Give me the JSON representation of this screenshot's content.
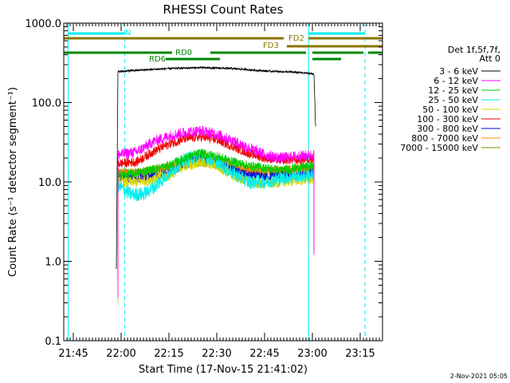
{
  "chart_data": {
    "type": "line",
    "title": "RHESSI Count Rates",
    "xlabel": "Start Time (17-Nov-15 21:41:02)",
    "ylabel": "Count Rate (s⁻¹ detector segment⁻¹)",
    "yscale": "log",
    "ylim": [
      0.1,
      1000
    ],
    "xlim_minutes": [
      -3,
      97
    ],
    "x_ticks": [
      {
        "label": "21:45",
        "minutes": 0
      },
      {
        "label": "22:00",
        "minutes": 15
      },
      {
        "label": "22:15",
        "minutes": 30
      },
      {
        "label": "22:30",
        "minutes": 45
      },
      {
        "label": "22:45",
        "minutes": 60
      },
      {
        "label": "23:00",
        "minutes": 75
      },
      {
        "label": "23:15",
        "minutes": 90
      }
    ],
    "y_ticks": [
      {
        "label": "1000.0",
        "value": 1000
      },
      {
        "label": "100.0",
        "value": 100
      },
      {
        "label": "10.0",
        "value": 10
      },
      {
        "label": "1.0",
        "value": 1
      },
      {
        "label": "0.1",
        "value": 0.1
      }
    ],
    "legend_title": [
      "Det 1f,5f,7f,",
      "Att 0"
    ],
    "legend_position": "right",
    "series": [
      {
        "name": "3 - 6 keV",
        "color": "#000000",
        "x": [
          13.5,
          14,
          20,
          30,
          40,
          50,
          60,
          70,
          75.5,
          76
        ],
        "values": [
          0.8,
          245,
          255,
          268,
          275,
          268,
          250,
          240,
          230,
          50
        ]
      },
      {
        "name": "6 - 12 keV",
        "color": "#ff00ff",
        "x": [
          14,
          20,
          25,
          30,
          35,
          40,
          45,
          50,
          55,
          60,
          65,
          70,
          75.5
        ],
        "values": [
          22,
          24,
          32,
          38,
          42,
          44,
          40,
          33,
          27,
          22,
          20,
          21,
          22
        ]
      },
      {
        "name": "12 - 25 keV",
        "color": "#00cc00",
        "x": [
          14,
          20,
          30,
          35,
          40,
          45,
          50,
          55,
          60,
          65,
          70,
          75.5
        ],
        "values": [
          12,
          13,
          16,
          20,
          23,
          21,
          18,
          16,
          15,
          14,
          15,
          16
        ]
      },
      {
        "name": "25 - 50 keV",
        "color": "#00eeee",
        "x": [
          14,
          18,
          22,
          26,
          30,
          35,
          40,
          45,
          50,
          55,
          60,
          65,
          70,
          75.5
        ],
        "values": [
          9,
          7,
          7,
          9,
          13,
          19,
          22,
          18,
          13,
          10,
          10,
          11,
          12,
          12
        ]
      },
      {
        "name": "50 - 100 keV",
        "color": "#d8d800",
        "x": [
          14,
          20,
          30,
          35,
          40,
          45,
          50,
          55,
          60,
          65,
          70,
          75.5
        ],
        "values": [
          10,
          10,
          12,
          16,
          18,
          16,
          12,
          10,
          9.5,
          10,
          10.5,
          11
        ]
      },
      {
        "name": "100 - 300 keV",
        "color": "#ee0000",
        "x": [
          14,
          20,
          25,
          30,
          35,
          40,
          45,
          50,
          55,
          60,
          65,
          70,
          75.5
        ],
        "values": [
          17,
          18,
          24,
          30,
          35,
          37,
          34,
          28,
          23,
          20,
          19,
          19,
          20
        ]
      },
      {
        "name": "300 - 800 keV",
        "color": "#0000dd",
        "x": [
          14,
          20,
          30,
          35,
          40,
          45,
          50,
          55,
          60,
          65,
          70,
          75.5
        ],
        "values": [
          11,
          11,
          13,
          17,
          20,
          17,
          14,
          12,
          11.5,
          12,
          12,
          13
        ]
      },
      {
        "name": "800 - 7000 keV",
        "color": "#ff8800",
        "x": [
          14,
          20,
          30,
          35,
          40,
          45,
          50,
          55,
          60,
          65,
          70,
          75.5
        ],
        "values": [
          13,
          13,
          15,
          19,
          21,
          19,
          16,
          14,
          13.5,
          14,
          14.5,
          15
        ]
      },
      {
        "name": "7000 - 15000 keV",
        "color": "#888800",
        "x": [
          14,
          20,
          30,
          40,
          50,
          60,
          70,
          75.5
        ],
        "values": [
          13,
          13,
          15,
          18,
          15,
          13.5,
          14,
          15
        ]
      }
    ],
    "cyan_solid_lines_minutes": [
      -1.6,
      73.8
    ],
    "cyan_dashed_lines_minutes": [
      16.1,
      91.5
    ],
    "status_bars": [
      {
        "label": "N",
        "color": "#00eeee",
        "level": 1,
        "segments_minutes": [
          [
            -1.6,
            16.1
          ],
          [
            73.8,
            91.5
          ]
        ]
      },
      {
        "label": "FD2",
        "color": "#8b7500",
        "level": 2,
        "segments_minutes": [
          [
            -3,
            66
          ],
          [
            73.8,
            97
          ]
        ]
      },
      {
        "label": "FD3",
        "color": "#8b7500",
        "level": 3,
        "segments_minutes": [
          [
            67,
            97
          ]
        ]
      },
      {
        "label": "RD0",
        "color": "#008800",
        "level": 4,
        "segments_minutes": [
          [
            -3,
            31
          ],
          [
            43,
            73
          ],
          [
            75,
            91
          ],
          [
            92.5,
            97
          ]
        ]
      },
      {
        "label": "RD6",
        "color": "#008800",
        "level": 5,
        "segments_minutes": [
          [
            29,
            46
          ],
          [
            75,
            84
          ]
        ]
      }
    ],
    "timestamp": "2-Nov-2021 05:05"
  }
}
